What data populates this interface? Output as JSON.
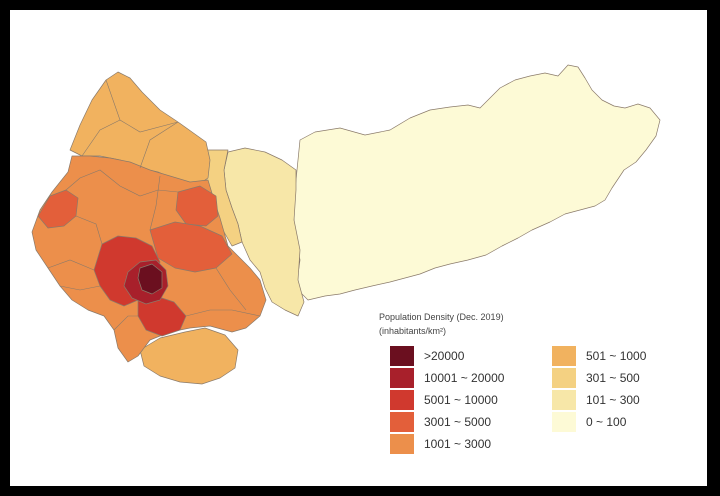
{
  "legend": {
    "title": "Population Density (Dec. 2019)",
    "subtitle": "(inhabitants/km²)",
    "classes": [
      {
        "label": ">20000",
        "color": "#6b0f1f"
      },
      {
        "label": "10001 ~ 20000",
        "color": "#a8202b"
      },
      {
        "label": "5001 ~ 10000",
        "color": "#d0392e"
      },
      {
        "label": "3001 ~ 5000",
        "color": "#e35f3a"
      },
      {
        "label": "1001 ~ 3000",
        "color": "#ec8f4b"
      },
      {
        "label": "501 ~ 1000",
        "color": "#f1b25f"
      },
      {
        "label": "301 ~ 500",
        "color": "#f4d182"
      },
      {
        "label": "101 ~ 300",
        "color": "#f7e7a8"
      },
      {
        "label": "0 ~ 100",
        "color": "#fdfad6"
      }
    ]
  }
}
